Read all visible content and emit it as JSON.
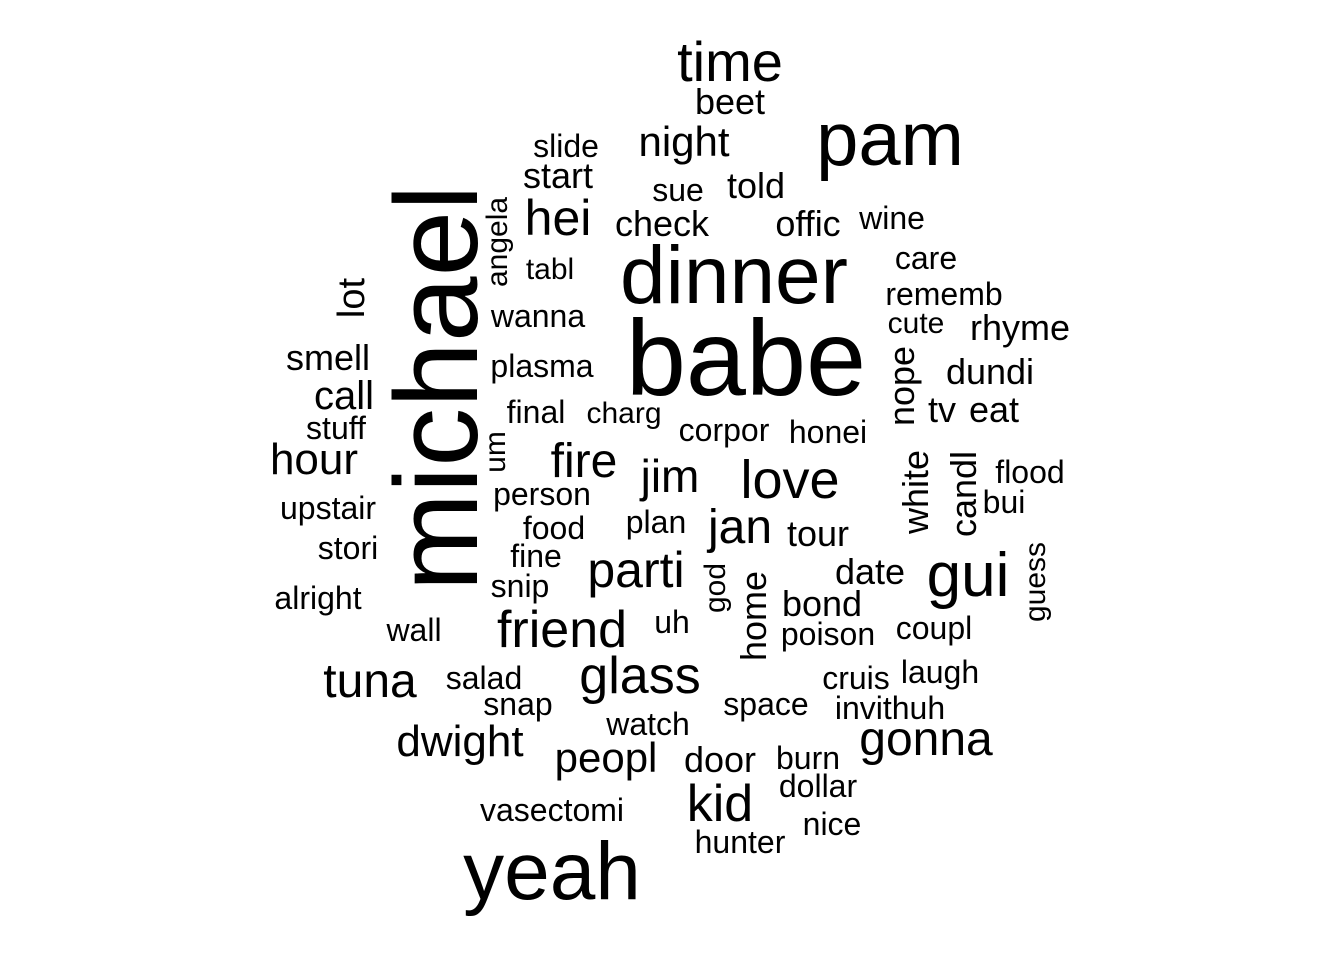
{
  "words": [
    {
      "text": "babe"
    },
    {
      "text": "michael",
      "rotated": true
    },
    {
      "text": "dinner"
    },
    {
      "text": "yeah"
    },
    {
      "text": "pam"
    },
    {
      "text": "time"
    },
    {
      "text": "gui"
    },
    {
      "text": "parti"
    },
    {
      "text": "friend"
    },
    {
      "text": "glass"
    },
    {
      "text": "gonna"
    },
    {
      "text": "love"
    },
    {
      "text": "tuna"
    },
    {
      "text": "kid"
    },
    {
      "text": "hei"
    },
    {
      "text": "jan"
    },
    {
      "text": "night"
    },
    {
      "text": "fire"
    },
    {
      "text": "dwight"
    },
    {
      "text": "jim"
    },
    {
      "text": "peopl"
    },
    {
      "text": "hour"
    },
    {
      "text": "rhyme"
    },
    {
      "text": "call"
    },
    {
      "text": "dundi"
    },
    {
      "text": "smell"
    },
    {
      "text": "start"
    },
    {
      "text": "offic"
    },
    {
      "text": "tour"
    },
    {
      "text": "check"
    },
    {
      "text": "told"
    },
    {
      "text": "door"
    },
    {
      "text": "bond"
    },
    {
      "text": "date"
    },
    {
      "text": "eat"
    },
    {
      "text": "beet"
    },
    {
      "text": "lot",
      "rotated": true
    },
    {
      "text": "angela",
      "rotated": true
    },
    {
      "text": "nope",
      "rotated": true
    },
    {
      "text": "white",
      "rotated": true
    },
    {
      "text": "candl",
      "rotated": true
    },
    {
      "text": "home",
      "rotated": true
    },
    {
      "text": "god",
      "rotated": true
    },
    {
      "text": "guess",
      "rotated": true
    },
    {
      "text": "um",
      "rotated": true
    },
    {
      "text": "tv"
    },
    {
      "text": "laugh"
    },
    {
      "text": "cruis"
    },
    {
      "text": "slide"
    },
    {
      "text": "sue"
    },
    {
      "text": "wine"
    },
    {
      "text": "care"
    },
    {
      "text": "rememb"
    },
    {
      "text": "cute"
    },
    {
      "text": "tabl"
    },
    {
      "text": "wanna"
    },
    {
      "text": "plasma"
    },
    {
      "text": "final"
    },
    {
      "text": "charg"
    },
    {
      "text": "corpor"
    },
    {
      "text": "honei"
    },
    {
      "text": "stuff"
    },
    {
      "text": "flood"
    },
    {
      "text": "bui"
    },
    {
      "text": "person"
    },
    {
      "text": "upstair"
    },
    {
      "text": "food"
    },
    {
      "text": "plan"
    },
    {
      "text": "stori"
    },
    {
      "text": "fine"
    },
    {
      "text": "snip"
    },
    {
      "text": "alright"
    },
    {
      "text": "wall"
    },
    {
      "text": "uh"
    },
    {
      "text": "poison"
    },
    {
      "text": "coupl"
    },
    {
      "text": "salad"
    },
    {
      "text": "snap"
    },
    {
      "text": "space"
    },
    {
      "text": "invithuh"
    },
    {
      "text": "watch"
    },
    {
      "text": "burn"
    },
    {
      "text": "dollar"
    },
    {
      "text": "vasectomi"
    },
    {
      "text": "nice"
    },
    {
      "text": "hunter"
    }
  ]
}
